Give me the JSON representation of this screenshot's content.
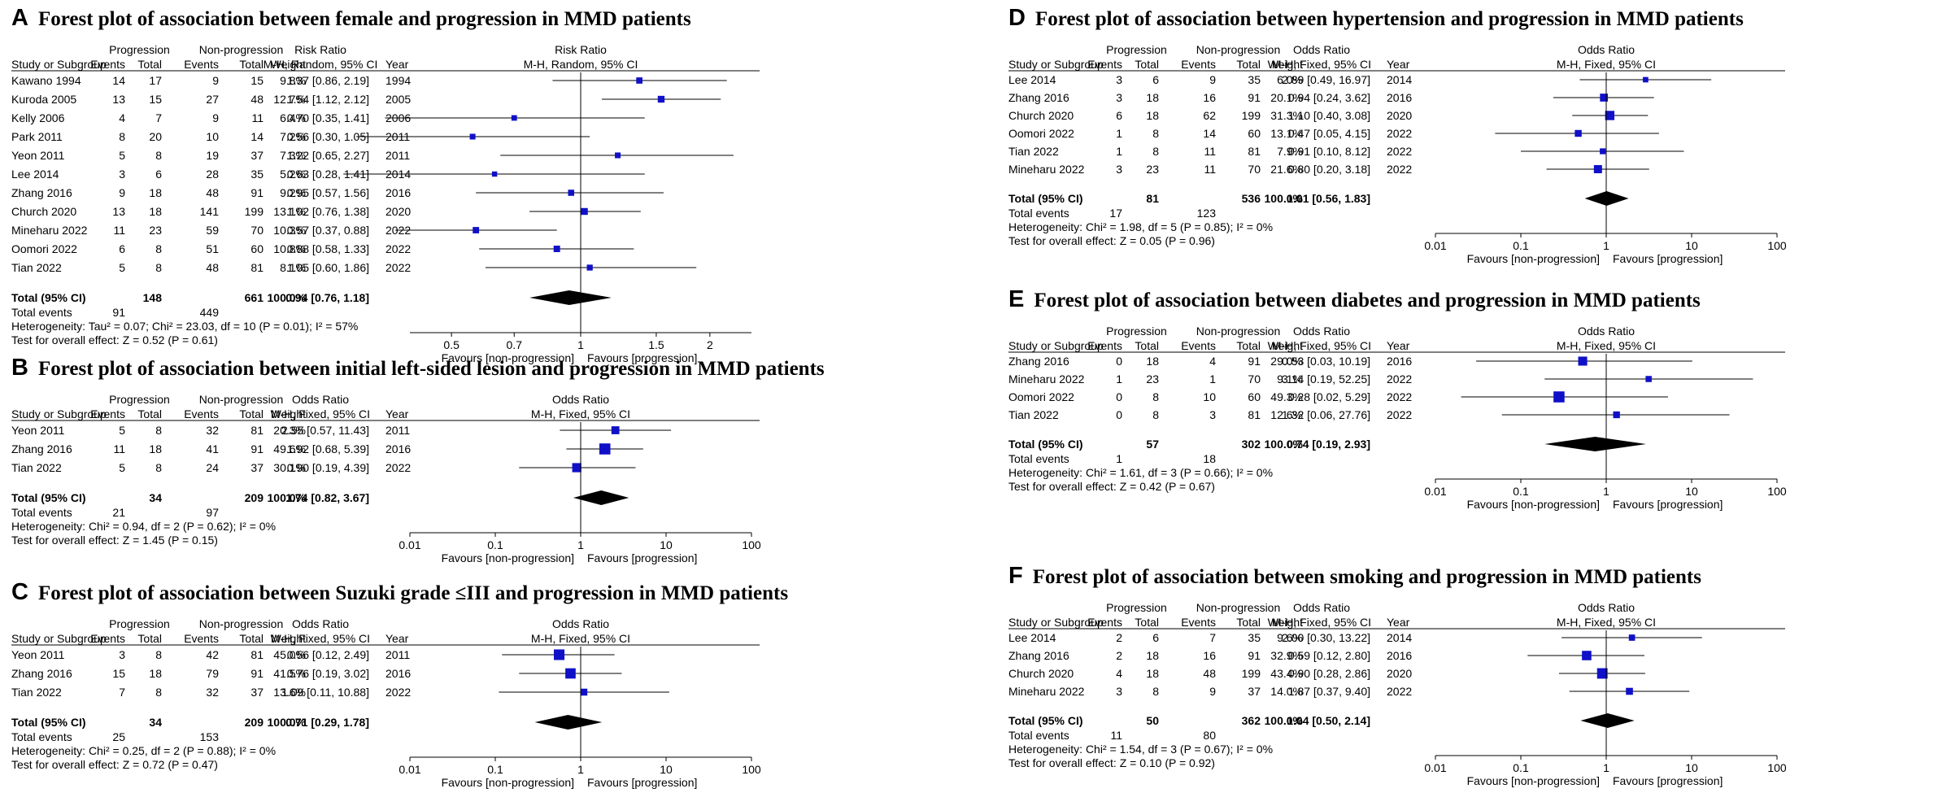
{
  "colors": {
    "marker": "#1010c8",
    "diamond": "#000000",
    "line": "#000000"
  },
  "headers": {
    "group_prog": "Progression",
    "group_nonprog": "Non-progression",
    "study": "Study or Subgroup",
    "events": "Events",
    "total": "Total",
    "weight": "Weight",
    "year": "Year",
    "fav_left": "Favours [non-progression]",
    "fav_right": "Favours [progression]",
    "total_events": "Total events"
  },
  "chart_data": [
    {
      "type": "forest",
      "letter": "A",
      "title": "Forest plot of association between female and progression in MMD patients",
      "measure": "Risk Ratio",
      "method": "M-H, Random, 95% CI",
      "axis": {
        "min": 0.4,
        "max": 2.5,
        "ticks": [
          "0.5",
          "0.7",
          "1",
          "1.5",
          "2"
        ]
      },
      "studies": [
        {
          "name": "Kawano 1994",
          "e1": "14",
          "n1": "17",
          "e2": "9",
          "n2": "15",
          "weight": "9.8%",
          "ci": "1.37 [0.86, 2.19]",
          "year": "1994",
          "est": 1.37,
          "lo": 0.86,
          "hi": 2.19
        },
        {
          "name": "Kuroda 2005",
          "e1": "13",
          "n1": "15",
          "e2": "27",
          "n2": "48",
          "weight": "12.7%",
          "ci": "1.54 [1.12, 2.12]",
          "year": "2005",
          "est": 1.54,
          "lo": 1.12,
          "hi": 2.12
        },
        {
          "name": "Kelly 2006",
          "e1": "4",
          "n1": "7",
          "e2": "9",
          "n2": "11",
          "weight": "6.4%",
          "ci": "0.70 [0.35, 1.41]",
          "year": "2006",
          "est": 0.7,
          "lo": 0.35,
          "hi": 1.41
        },
        {
          "name": "Park 2011",
          "e1": "8",
          "n1": "20",
          "e2": "10",
          "n2": "14",
          "weight": "7.2%",
          "ci": "0.56 [0.30, 1.05]",
          "year": "2011",
          "est": 0.56,
          "lo": 0.3,
          "hi": 1.05
        },
        {
          "name": "Yeon 2011",
          "e1": "5",
          "n1": "8",
          "e2": "19",
          "n2": "37",
          "weight": "7.3%",
          "ci": "1.22 [0.65, 2.27]",
          "year": "2011",
          "est": 1.22,
          "lo": 0.65,
          "hi": 2.27
        },
        {
          "name": "Lee 2014",
          "e1": "3",
          "n1": "6",
          "e2": "28",
          "n2": "35",
          "weight": "5.2%",
          "ci": "0.63 [0.28, 1.41]",
          "year": "2014",
          "est": 0.63,
          "lo": 0.28,
          "hi": 1.41
        },
        {
          "name": "Zhang 2016",
          "e1": "9",
          "n1": "18",
          "e2": "48",
          "n2": "91",
          "weight": "9.2%",
          "ci": "0.95 [0.57, 1.56]",
          "year": "2016",
          "est": 0.95,
          "lo": 0.57,
          "hi": 1.56
        },
        {
          "name": "Church 2020",
          "e1": "13",
          "n1": "18",
          "e2": "141",
          "n2": "199",
          "weight": "13.1%",
          "ci": "1.02 [0.76, 1.38]",
          "year": "2020",
          "est": 1.02,
          "lo": 0.76,
          "hi": 1.38
        },
        {
          "name": "Mineharu 2022",
          "e1": "11",
          "n1": "23",
          "e2": "59",
          "n2": "70",
          "weight": "10.3%",
          "ci": "0.57 [0.37, 0.88]",
          "year": "2022",
          "est": 0.57,
          "lo": 0.37,
          "hi": 0.88
        },
        {
          "name": "Oomori 2022",
          "e1": "6",
          "n1": "8",
          "e2": "51",
          "n2": "60",
          "weight": "10.8%",
          "ci": "0.88 [0.58, 1.33]",
          "year": "2022",
          "est": 0.88,
          "lo": 0.58,
          "hi": 1.33
        },
        {
          "name": "Tian 2022",
          "e1": "5",
          "n1": "8",
          "e2": "48",
          "n2": "81",
          "weight": "8.1%",
          "ci": "1.05 [0.60, 1.86]",
          "year": "2022",
          "est": 1.05,
          "lo": 0.6,
          "hi": 1.86
        }
      ],
      "total": {
        "label": "Total (95% CI)",
        "n1": "148",
        "n2": "661",
        "weight": "100.0%",
        "ci": "0.94 [0.76, 1.18]",
        "est": 0.94,
        "lo": 0.76,
        "hi": 1.18
      },
      "total_events": {
        "e1": "91",
        "e2": "449"
      },
      "heterogeneity": "Heterogeneity: Tau² = 0.07; Chi² = 23.03, df = 10 (P = 0.01); I² = 57%",
      "overall": "Test for overall effect: Z = 0.52 (P = 0.61)"
    },
    {
      "type": "forest",
      "letter": "B",
      "title": "Forest plot of association between initial left-sided lesion and progression in MMD patients",
      "measure": "Odds Ratio",
      "method": "M-H, Fixed, 95% CI",
      "axis": {
        "min": 0.01,
        "max": 100,
        "ticks": [
          "0.01",
          "0.1",
          "1",
          "10",
          "100"
        ]
      },
      "studies": [
        {
          "name": "Yeon 2011",
          "e1": "5",
          "n1": "8",
          "e2": "32",
          "n2": "81",
          "weight": "20.3%",
          "ci": "2.55 [0.57, 11.43]",
          "year": "2011",
          "est": 2.55,
          "lo": 0.57,
          "hi": 11.43
        },
        {
          "name": "Zhang 2016",
          "e1": "11",
          "n1": "18",
          "e2": "41",
          "n2": "91",
          "weight": "49.6%",
          "ci": "1.92 [0.68, 5.39]",
          "year": "2016",
          "est": 1.92,
          "lo": 0.68,
          "hi": 5.39
        },
        {
          "name": "Tian 2022",
          "e1": "5",
          "n1": "8",
          "e2": "24",
          "n2": "37",
          "weight": "30.1%",
          "ci": "0.90 [0.19, 4.39]",
          "year": "2022",
          "est": 0.9,
          "lo": 0.19,
          "hi": 4.39
        }
      ],
      "total": {
        "label": "Total (95% CI)",
        "n1": "34",
        "n2": "209",
        "weight": "100.0%",
        "ci": "1.74 [0.82, 3.67]",
        "est": 1.74,
        "lo": 0.82,
        "hi": 3.67
      },
      "total_events": {
        "e1": "21",
        "e2": "97"
      },
      "heterogeneity": "Heterogeneity: Chi² = 0.94, df = 2 (P = 0.62); I² = 0%",
      "overall": "Test for overall effect: Z = 1.45 (P = 0.15)"
    },
    {
      "type": "forest",
      "letter": "C",
      "title": "Forest plot of association between Suzuki grade ≤III and progression in MMD patients",
      "measure": "Odds Ratio",
      "method": "M-H, Fixed, 95% CI",
      "axis": {
        "min": 0.01,
        "max": 100,
        "ticks": [
          "0.01",
          "0.1",
          "1",
          "10",
          "100"
        ]
      },
      "studies": [
        {
          "name": "Yeon 2011",
          "e1": "3",
          "n1": "8",
          "e2": "42",
          "n2": "81",
          "weight": "45.0%",
          "ci": "0.56 [0.12, 2.49]",
          "year": "2011",
          "est": 0.56,
          "lo": 0.12,
          "hi": 2.49
        },
        {
          "name": "Zhang 2016",
          "e1": "15",
          "n1": "18",
          "e2": "79",
          "n2": "91",
          "weight": "41.5%",
          "ci": "0.76 [0.19, 3.02]",
          "year": "2016",
          "est": 0.76,
          "lo": 0.19,
          "hi": 3.02
        },
        {
          "name": "Tian 2022",
          "e1": "7",
          "n1": "8",
          "e2": "32",
          "n2": "37",
          "weight": "13.6%",
          "ci": "1.09 [0.11, 10.88]",
          "year": "2022",
          "est": 1.09,
          "lo": 0.11,
          "hi": 10.88
        }
      ],
      "total": {
        "label": "Total (95% CI)",
        "n1": "34",
        "n2": "209",
        "weight": "100.0%",
        "ci": "0.71 [0.29, 1.78]",
        "est": 0.71,
        "lo": 0.29,
        "hi": 1.78
      },
      "total_events": {
        "e1": "25",
        "e2": "153"
      },
      "heterogeneity": "Heterogeneity: Chi² = 0.25, df = 2 (P = 0.88); I² = 0%",
      "overall": "Test for overall effect: Z = 0.72 (P = 0.47)"
    },
    {
      "type": "forest",
      "letter": "D",
      "title": "Forest plot of association between hypertension and progression in MMD patients",
      "measure": "Odds Ratio",
      "method": "M-H, Fixed, 95% CI",
      "axis": {
        "min": 0.01,
        "max": 100,
        "ticks": [
          "0.01",
          "0.1",
          "1",
          "10",
          "100"
        ]
      },
      "studies": [
        {
          "name": "Lee 2014",
          "e1": "3",
          "n1": "6",
          "e2": "9",
          "n2": "35",
          "weight": "6.0%",
          "ci": "2.89 [0.49, 16.97]",
          "year": "2014",
          "est": 2.89,
          "lo": 0.49,
          "hi": 16.97
        },
        {
          "name": "Zhang 2016",
          "e1": "3",
          "n1": "18",
          "e2": "16",
          "n2": "91",
          "weight": "20.1%",
          "ci": "0.94 [0.24, 3.62]",
          "year": "2016",
          "est": 0.94,
          "lo": 0.24,
          "hi": 3.62
        },
        {
          "name": "Church 2020",
          "e1": "6",
          "n1": "18",
          "e2": "62",
          "n2": "199",
          "weight": "31.3%",
          "ci": "1.10 [0.40, 3.08]",
          "year": "2020",
          "est": 1.1,
          "lo": 0.4,
          "hi": 3.08
        },
        {
          "name": "Oomori 2022",
          "e1": "1",
          "n1": "8",
          "e2": "14",
          "n2": "60",
          "weight": "13.1%",
          "ci": "0.47 [0.05, 4.15]",
          "year": "2022",
          "est": 0.47,
          "lo": 0.05,
          "hi": 4.15
        },
        {
          "name": "Tian 2022",
          "e1": "1",
          "n1": "8",
          "e2": "11",
          "n2": "81",
          "weight": "7.9%",
          "ci": "0.91 [0.10, 8.12]",
          "year": "2022",
          "est": 0.91,
          "lo": 0.1,
          "hi": 8.12
        },
        {
          "name": "Mineharu 2022",
          "e1": "3",
          "n1": "23",
          "e2": "11",
          "n2": "70",
          "weight": "21.6%",
          "ci": "0.80 [0.20, 3.18]",
          "year": "2022",
          "est": 0.8,
          "lo": 0.2,
          "hi": 3.18
        }
      ],
      "total": {
        "label": "Total (95% CI)",
        "n1": "81",
        "n2": "536",
        "weight": "100.0%",
        "ci": "1.01 [0.56, 1.83]",
        "est": 1.01,
        "lo": 0.56,
        "hi": 1.83
      },
      "total_events": {
        "e1": "17",
        "e2": "123"
      },
      "heterogeneity": "Heterogeneity: Chi² = 1.98, df = 5 (P = 0.85); I² = 0%",
      "overall": "Test for overall effect: Z = 0.05 (P = 0.96)"
    },
    {
      "type": "forest",
      "letter": "E",
      "title": "Forest plot of association between diabetes and progression in MMD patients",
      "measure": "Odds Ratio",
      "method": "M-H, Fixed, 95% CI",
      "axis": {
        "min": 0.01,
        "max": 100,
        "ticks": [
          "0.01",
          "0.1",
          "1",
          "10",
          "100"
        ]
      },
      "studies": [
        {
          "name": "Zhang 2016",
          "e1": "0",
          "n1": "18",
          "e2": "4",
          "n2": "91",
          "weight": "29.0%",
          "ci": "0.53 [0.03, 10.19]",
          "year": "2016",
          "est": 0.53,
          "lo": 0.03,
          "hi": 10.19
        },
        {
          "name": "Mineharu 2022",
          "e1": "1",
          "n1": "23",
          "e2": "1",
          "n2": "70",
          "weight": "9.1%",
          "ci": "3.14 [0.19, 52.25]",
          "year": "2022",
          "est": 3.14,
          "lo": 0.19,
          "hi": 52.25
        },
        {
          "name": "Oomori 2022",
          "e1": "0",
          "n1": "8",
          "e2": "10",
          "n2": "60",
          "weight": "49.3%",
          "ci": "0.28 [0.02, 5.29]",
          "year": "2022",
          "est": 0.28,
          "lo": 0.02,
          "hi": 5.29
        },
        {
          "name": "Tian 2022",
          "e1": "0",
          "n1": "8",
          "e2": "3",
          "n2": "81",
          "weight": "12.6%",
          "ci": "1.32 [0.06, 27.76]",
          "year": "2022",
          "est": 1.32,
          "lo": 0.06,
          "hi": 27.76
        }
      ],
      "total": {
        "label": "Total (95% CI)",
        "n1": "57",
        "n2": "302",
        "weight": "100.0%",
        "ci": "0.74 [0.19, 2.93]",
        "est": 0.74,
        "lo": 0.19,
        "hi": 2.93
      },
      "total_events": {
        "e1": "1",
        "e2": "18"
      },
      "heterogeneity": "Heterogeneity: Chi² = 1.61, df = 3 (P = 0.66); I² = 0%",
      "overall": "Test for overall effect: Z = 0.42 (P = 0.67)"
    },
    {
      "type": "forest",
      "letter": "F",
      "title": "Forest plot of association between smoking and progression in MMD patients",
      "measure": "Odds Ratio",
      "method": "M-H, Fixed, 95% CI",
      "axis": {
        "min": 0.01,
        "max": 100,
        "ticks": [
          "0.01",
          "0.1",
          "1",
          "10",
          "100"
        ]
      },
      "studies": [
        {
          "name": "Lee 2014",
          "e1": "2",
          "n1": "6",
          "e2": "7",
          "n2": "35",
          "weight": "9.6%",
          "ci": "2.00 [0.30, 13.22]",
          "year": "2014",
          "est": 2.0,
          "lo": 0.3,
          "hi": 13.22
        },
        {
          "name": "Zhang 2016",
          "e1": "2",
          "n1": "18",
          "e2": "16",
          "n2": "91",
          "weight": "32.9%",
          "ci": "0.59 [0.12, 2.80]",
          "year": "2016",
          "est": 0.59,
          "lo": 0.12,
          "hi": 2.8
        },
        {
          "name": "Church 2020",
          "e1": "4",
          "n1": "18",
          "e2": "48",
          "n2": "199",
          "weight": "43.4%",
          "ci": "0.90 [0.28, 2.86]",
          "year": "2020",
          "est": 0.9,
          "lo": 0.28,
          "hi": 2.86
        },
        {
          "name": "Mineharu 2022",
          "e1": "3",
          "n1": "8",
          "e2": "9",
          "n2": "37",
          "weight": "14.0%",
          "ci": "1.87 [0.37, 9.40]",
          "year": "2022",
          "est": 1.87,
          "lo": 0.37,
          "hi": 9.4
        }
      ],
      "total": {
        "label": "Total (95% CI)",
        "n1": "50",
        "n2": "362",
        "weight": "100.0%",
        "ci": "1.04 [0.50, 2.14]",
        "est": 1.04,
        "lo": 0.5,
        "hi": 2.14
      },
      "total_events": {
        "e1": "11",
        "e2": "80"
      },
      "heterogeneity": "Heterogeneity: Chi² = 1.54, df = 3 (P = 0.67); I² = 0%",
      "overall": "Test for overall effect: Z = 0.10 (P = 0.92)"
    }
  ]
}
